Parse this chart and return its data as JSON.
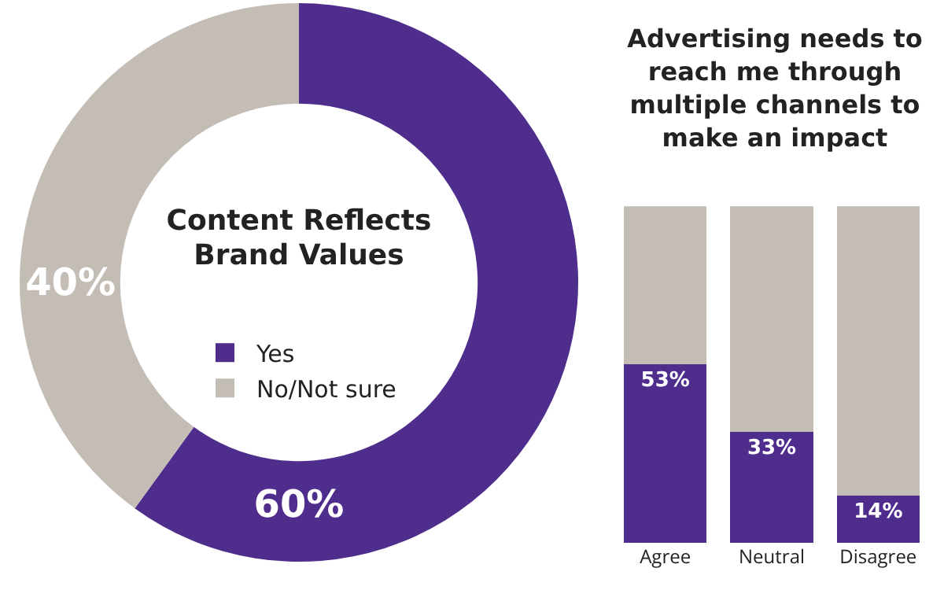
{
  "chart_data": [
    {
      "type": "donut",
      "title": "Content Reflects Brand Values",
      "categories": [
        "Yes",
        "No/Not sure"
      ],
      "values": [
        60,
        40
      ],
      "colors": [
        "#4f2d8c",
        "#c4bdb5"
      ],
      "value_labels": [
        "60%",
        "40%"
      ],
      "legend": "center"
    },
    {
      "type": "bar",
      "title": "Advertising needs to reach me through multiple channels to make an impact",
      "categories": [
        "Agree",
        "Neutral",
        "Disagree"
      ],
      "stacked": true,
      "ylim": [
        0,
        100
      ],
      "tick_labels": "x",
      "legend": false,
      "series": [
        {
          "color": "#4f2d8c",
          "values": [
            53,
            33,
            14
          ],
          "value_labels": [
            "53%",
            "33%",
            "14%"
          ]
        },
        {
          "color": "#c4bdb5",
          "values": [
            47,
            67,
            86
          ]
        }
      ]
    }
  ]
}
